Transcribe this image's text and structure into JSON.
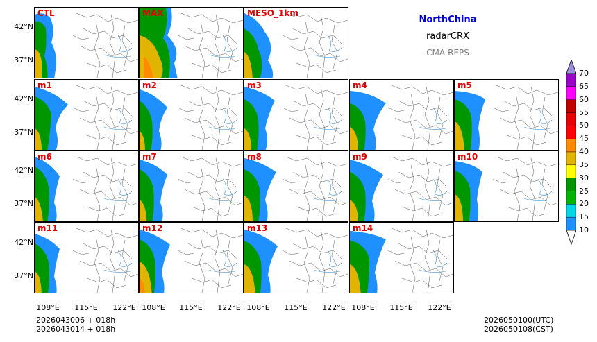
{
  "title": {
    "region": "NorthChina",
    "variable": "radarCRX",
    "system": "CMA-REPS"
  },
  "panels": [
    "CTL",
    "MAX",
    "MESO_1km",
    "m1",
    "m2",
    "m3",
    "m4",
    "m5",
    "m6",
    "m7",
    "m8",
    "m9",
    "m10",
    "m11",
    "m12",
    "m13",
    "m14"
  ],
  "axes": {
    "lat_ticks": [
      "42°N",
      "37°N"
    ],
    "lon_ticks": [
      "108°E",
      "115°E",
      "122°E"
    ]
  },
  "colorbar": {
    "levels": [
      "10",
      "15",
      "20",
      "25",
      "30",
      "35",
      "40",
      "45",
      "50",
      "55",
      "60",
      "65",
      "70"
    ],
    "colors": [
      "#1e90ff",
      "#00d8e8",
      "#00b400",
      "#009600",
      "#ffff00",
      "#e0b400",
      "#ff8c00",
      "#ff0000",
      "#e60000",
      "#c00000",
      "#ff00ff",
      "#9a00c8",
      "#a090e0"
    ]
  },
  "footer": {
    "init_utc": "2026043006  +  018h",
    "init_cst": "2026043014  +  018h",
    "valid_utc": "2026050100(UTC)",
    "valid_cst": "2026050108(CST)"
  }
}
